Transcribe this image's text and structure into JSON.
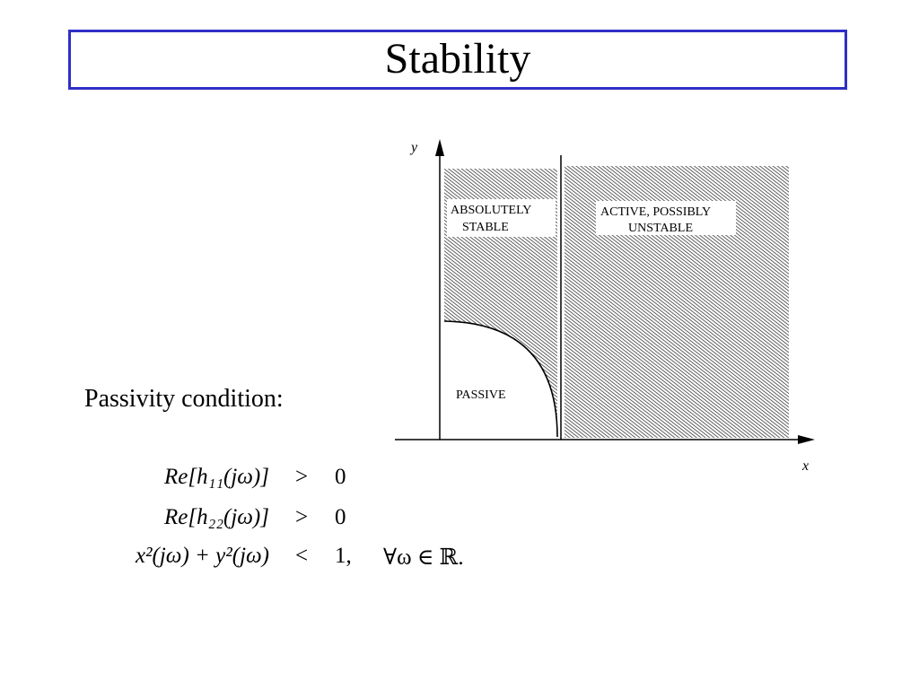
{
  "slide": {
    "title": "Stability",
    "lead_text": "Passivity condition:"
  },
  "diagram": {
    "y_axis_label": "y",
    "x_axis_label": "x",
    "regions": {
      "absolutely_stable_line1": "ABSOLUTELY",
      "absolutely_stable_line2": "STABLE",
      "active_line1": "ACTIVE, POSSIBLY",
      "active_line2": "UNSTABLE",
      "passive": "PASSIVE"
    }
  },
  "equations": [
    {
      "lhs": "Re[h₁₁(jω)]",
      "op": ">",
      "rhs": "0",
      "quantifier": ""
    },
    {
      "lhs": "Re[h₂₂(jω)]",
      "op": ">",
      "rhs": "0",
      "quantifier": ""
    },
    {
      "lhs": "x²(jω) + y²(jω)",
      "op": "<",
      "rhs": "1,",
      "quantifier": "∀ω ∈ ℝ."
    }
  ]
}
